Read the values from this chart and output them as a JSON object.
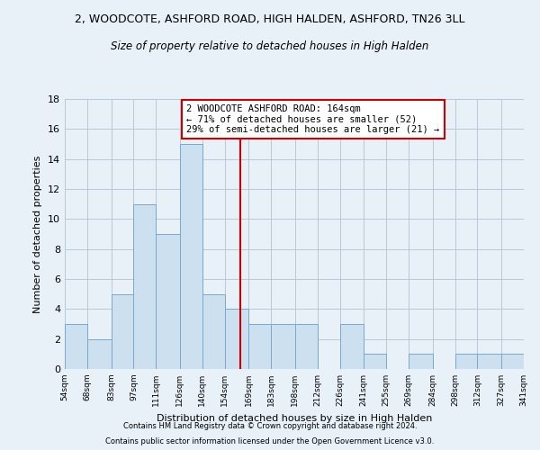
{
  "title1": "2, WOODCOTE, ASHFORD ROAD, HIGH HALDEN, ASHFORD, TN26 3LL",
  "title2": "Size of property relative to detached houses in High Halden",
  "xlabel": "Distribution of detached houses by size in High Halden",
  "ylabel": "Number of detached properties",
  "bins": [
    54,
    68,
    83,
    97,
    111,
    126,
    140,
    154,
    169,
    183,
    198,
    212,
    226,
    241,
    255,
    269,
    284,
    298,
    312,
    327,
    341
  ],
  "bin_labels": [
    "54sqm",
    "68sqm",
    "83sqm",
    "97sqm",
    "111sqm",
    "126sqm",
    "140sqm",
    "154sqm",
    "169sqm",
    "183sqm",
    "198sqm",
    "212sqm",
    "226sqm",
    "241sqm",
    "255sqm",
    "269sqm",
    "284sqm",
    "298sqm",
    "312sqm",
    "327sqm",
    "341sqm"
  ],
  "bar_heights": [
    3,
    2,
    5,
    11,
    9,
    15,
    5,
    4,
    3,
    3,
    3,
    0,
    3,
    1,
    0,
    1,
    0,
    1,
    1,
    1
  ],
  "bar_color": "#cce0f0",
  "bar_edge_color": "#7aa8cc",
  "property_size": 164,
  "annotation_line1": "2 WOODCOTE ASHFORD ROAD: 164sqm",
  "annotation_line2": "← 71% of detached houses are smaller (52)",
  "annotation_line3": "29% of semi-detached houses are larger (21) →",
  "vline_color": "#cc0000",
  "annotation_box_edge": "#cc0000",
  "annotation_box_face": "#ffffff",
  "ylim": [
    0,
    18
  ],
  "yticks": [
    0,
    2,
    4,
    6,
    8,
    10,
    12,
    14,
    16,
    18
  ],
  "footer1": "Contains HM Land Registry data © Crown copyright and database right 2024.",
  "footer2": "Contains public sector information licensed under the Open Government Licence v3.0.",
  "bg_color": "#e8f0f8",
  "grid_color": "#b8c8d8"
}
